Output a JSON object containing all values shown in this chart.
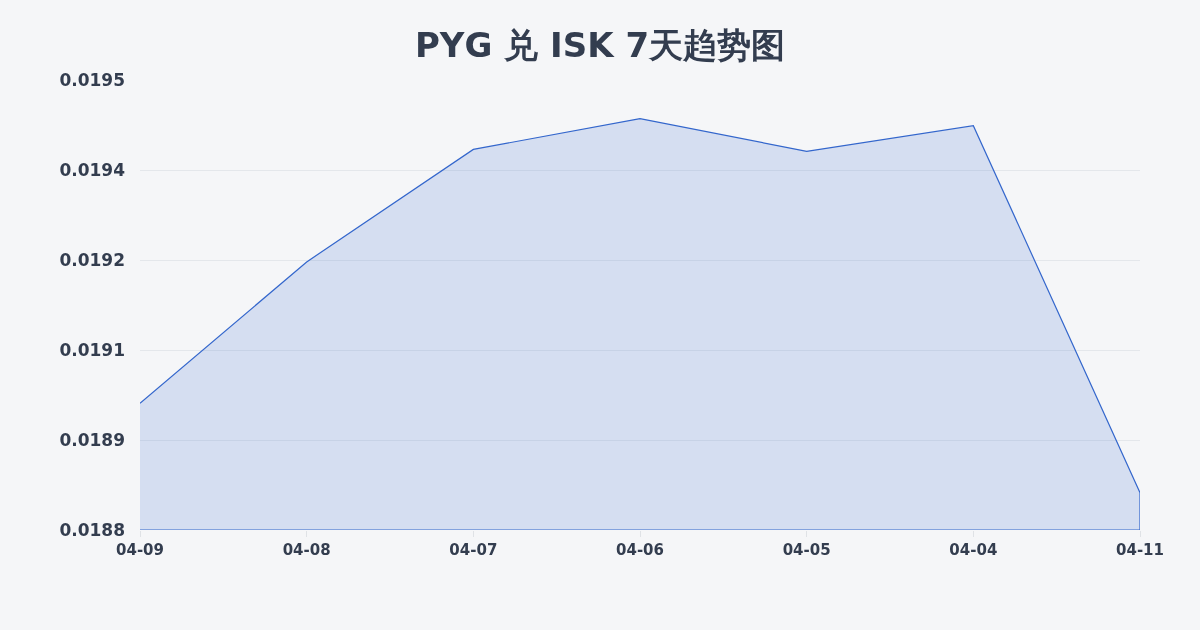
{
  "chart_data": {
    "type": "area",
    "title": "PYG 兑 ISK 7天趋势图",
    "categories": [
      "04-09",
      "04-08",
      "04-07",
      "04-06",
      "04-05",
      "04-04",
      "04-11"
    ],
    "values": [
      0.018997,
      0.019217,
      0.019392,
      0.01944,
      0.019389,
      0.019429,
      0.018858
    ],
    "color": "#3366cc",
    "ylim": [
      0.0188,
      0.0195
    ],
    "yticks": [
      0.0188,
      {
        "value": 0.01894,
        "label": "0.0189"
      },
      {
        "value": 0.01908,
        "label": "0.0191"
      },
      {
        "value": 0.01922,
        "label": "0.0192"
      },
      {
        "value": 0.01936,
        "label": "0.0194"
      },
      0.0195
    ],
    "grid": "y"
  }
}
